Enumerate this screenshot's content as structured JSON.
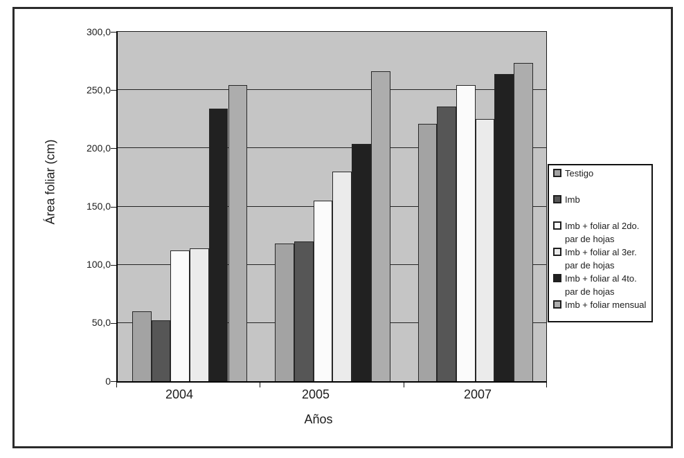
{
  "chart_data": {
    "type": "bar",
    "title": "",
    "xlabel": "Años",
    "ylabel": "Área foliar (cm)",
    "categories": [
      "2004",
      "2005",
      "2007"
    ],
    "series": [
      {
        "name": "Testigo",
        "legend_lines": [
          "Testigo"
        ],
        "color": "#a3a3a3",
        "values": [
          60,
          118,
          221
        ]
      },
      {
        "name": "Imb",
        "legend_lines": [
          "Imb"
        ],
        "color": "#565656",
        "values": [
          52,
          120,
          236
        ]
      },
      {
        "name": "Imb + foliar al 2do. par de hojas",
        "legend_lines": [
          "Imb + foliar al 2do.",
          "par de hojas"
        ],
        "color": "#fbfbfb",
        "values": [
          112,
          155,
          254
        ]
      },
      {
        "name": "Imb + foliar al 3er. par de hojas",
        "legend_lines": [
          "Imb + foliar al 3er.",
          "par de hojas"
        ],
        "color": "#ebebeb",
        "values": [
          114,
          180,
          225
        ]
      },
      {
        "name": "Imb + foliar al 4to. par de hojas",
        "legend_lines": [
          "Imb + foliar al 4to.",
          "par de hojas"
        ],
        "color": "#212121",
        "values": [
          234,
          204,
          264
        ]
      },
      {
        "name": "Imb + foliar mensual",
        "legend_lines": [
          "Imb + foliar mensual"
        ],
        "color": "#adadad",
        "values": [
          254,
          266,
          273
        ]
      }
    ],
    "y_axis": {
      "min": 0,
      "max": 300,
      "step": 50,
      "tick_values": [
        300,
        250,
        200,
        150,
        100,
        50,
        0
      ],
      "tick_labels": [
        "300,0",
        "250,0",
        "200,0",
        "150,0",
        "100,0",
        "50,0",
        "0"
      ]
    },
    "legend_position": "right",
    "grid": "horizontal",
    "plot_background": "#c5c5c5"
  }
}
